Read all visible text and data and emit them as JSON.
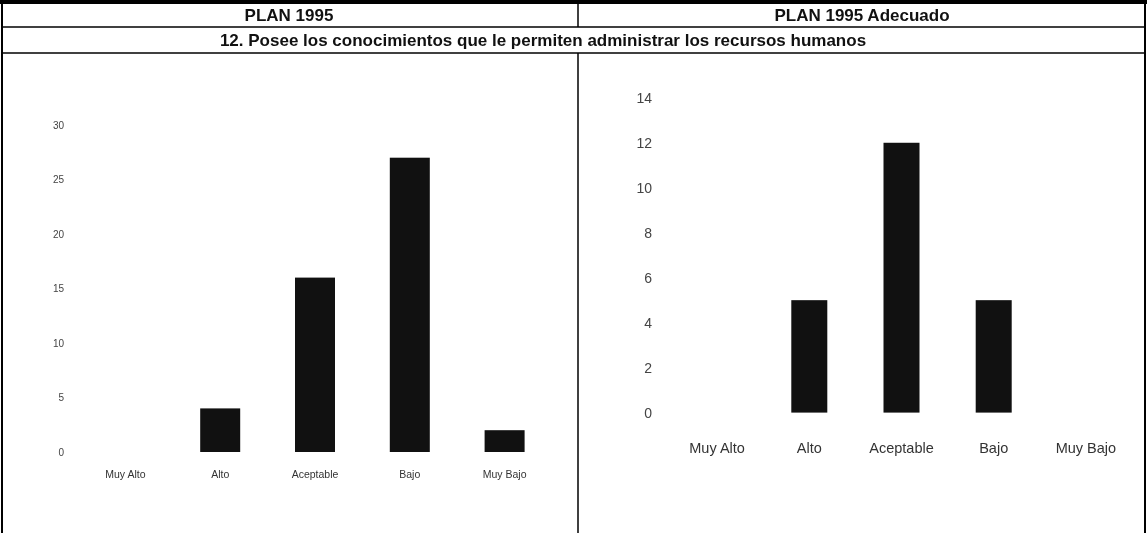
{
  "chart_data": [
    {
      "type": "bar",
      "title": "PLAN 1995",
      "subtitle": "12. Posee los conocimientos que le permiten administrar los recursos humanos",
      "categories": [
        "Muy Alto",
        "Alto",
        "Aceptable",
        "Bajo",
        "Muy Bajo"
      ],
      "values": [
        0,
        4,
        16,
        27,
        2
      ],
      "color": "#111111",
      "ylim": [
        0,
        30
      ],
      "yticks": [
        0,
        5,
        10,
        15,
        20,
        25,
        30
      ]
    },
    {
      "type": "bar",
      "title": "PLAN 1995 Adecuado",
      "categories": [
        "Muy Alto",
        "Alto",
        "Aceptable",
        "Bajo",
        "Muy Bajo"
      ],
      "values": [
        0,
        5,
        12,
        5,
        0
      ],
      "color": "#111111",
      "ylim": [
        0,
        14
      ],
      "yticks": [
        0,
        2,
        4,
        6,
        8,
        10,
        12,
        14
      ]
    }
  ]
}
